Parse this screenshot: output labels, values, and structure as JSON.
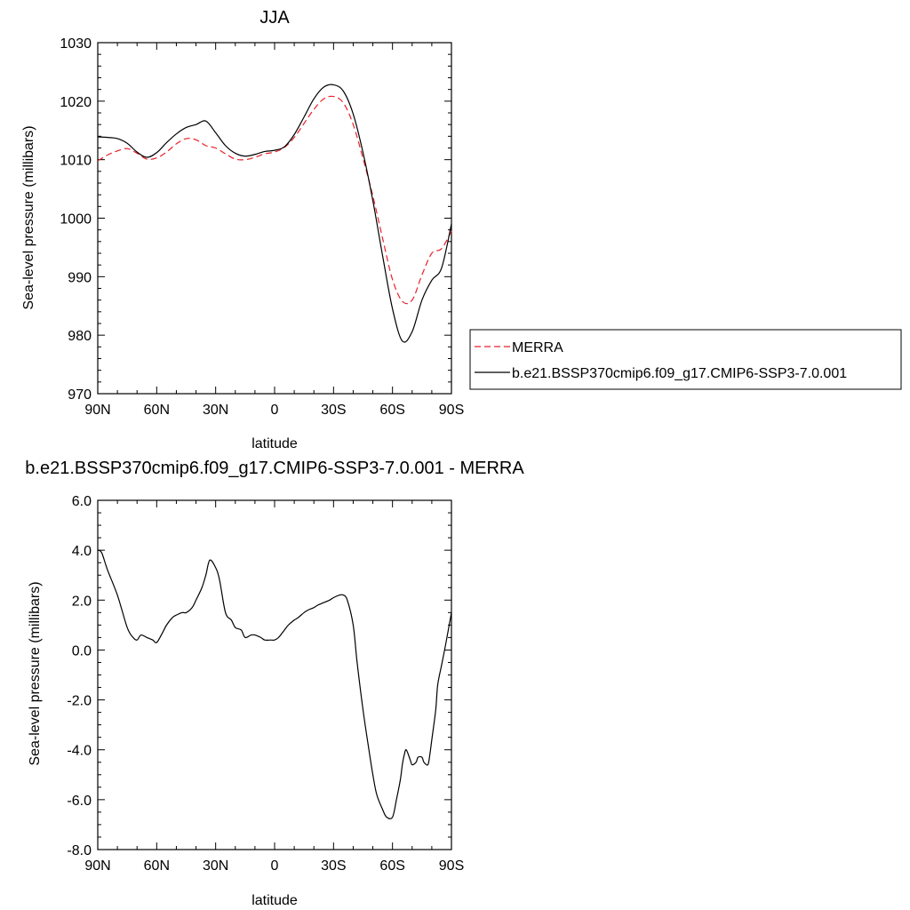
{
  "chart_data": [
    {
      "type": "line",
      "title": "JJA",
      "xlabel": "latitude",
      "ylabel": "Sea-level pressure (millibars)",
      "x_range": [
        90,
        -90
      ],
      "ylim": [
        970,
        1030
      ],
      "x_ticks": [
        90,
        60,
        30,
        0,
        -30,
        -60,
        -90
      ],
      "x_tick_labels": [
        "90N",
        "60N",
        "30N",
        "0",
        "30S",
        "60S",
        "90S"
      ],
      "y_ticks": [
        970,
        980,
        990,
        1000,
        1010,
        1020,
        1030
      ],
      "y_tick_labels": [
        "970",
        "980",
        "990",
        "1000",
        "1010",
        "1020",
        "1030"
      ],
      "grid": false,
      "legend_position": "right",
      "series": [
        {
          "name": "MERRA",
          "style": "dashed",
          "color": "#e8202a",
          "x": [
            90,
            85,
            80,
            75,
            70,
            65,
            60,
            55,
            50,
            45,
            40,
            35,
            30,
            25,
            20,
            15,
            10,
            5,
            0,
            -5,
            -10,
            -15,
            -20,
            -25,
            -30,
            -35,
            -40,
            -45,
            -50,
            -55,
            -60,
            -65,
            -70,
            -75,
            -80,
            -85,
            -90
          ],
          "y": [
            1009.8,
            1010.8,
            1011.5,
            1011.9,
            1011.1,
            1010.1,
            1010.3,
            1011.3,
            1012.7,
            1013.6,
            1013.4,
            1012.4,
            1012.0,
            1011.0,
            1010.1,
            1010.0,
            1010.4,
            1011.0,
            1011.3,
            1012.1,
            1013.8,
            1016.2,
            1018.6,
            1020.4,
            1020.8,
            1019.7,
            1016.0,
            1010.2,
            1003.8,
            996.5,
            989.5,
            985.8,
            986.0,
            990.3,
            994.0,
            994.8,
            997.8
          ]
        },
        {
          "name": "b.e21.BSSP370cmip6.f09_g17.CMIP6-SSP3-7.0.001",
          "style": "solid",
          "color": "#000000",
          "x": [
            90,
            85,
            80,
            75,
            70,
            65,
            60,
            55,
            50,
            45,
            40,
            35,
            30,
            25,
            20,
            15,
            10,
            5,
            0,
            -5,
            -10,
            -15,
            -20,
            -25,
            -30,
            -35,
            -40,
            -45,
            -50,
            -55,
            -60,
            -65,
            -70,
            -75,
            -80,
            -85,
            -90
          ],
          "y": [
            1013.9,
            1013.8,
            1013.6,
            1012.8,
            1011.3,
            1010.4,
            1011.2,
            1012.9,
            1014.4,
            1015.5,
            1016.0,
            1016.6,
            1014.6,
            1012.4,
            1011.1,
            1010.6,
            1010.9,
            1011.4,
            1011.6,
            1012.2,
            1014.3,
            1017.3,
            1020.4,
            1022.4,
            1022.8,
            1021.7,
            1017.8,
            1011.2,
            1003.0,
            993.5,
            984.5,
            979.0,
            980.6,
            986.0,
            989.4,
            991.5,
            999.0
          ]
        }
      ]
    },
    {
      "type": "line",
      "title": "b.e21.BSSP370cmip6.f09_g17.CMIP6-SSP3-7.0.001 - MERRA",
      "xlabel": "latitude",
      "ylabel": "Sea-level pressure (millibars)",
      "x_range": [
        90,
        -90
      ],
      "ylim": [
        -8.0,
        6.0
      ],
      "x_ticks": [
        90,
        60,
        30,
        0,
        -30,
        -60,
        -90
      ],
      "x_tick_labels": [
        "90N",
        "60N",
        "30N",
        "0",
        "30S",
        "60S",
        "90S"
      ],
      "y_ticks": [
        -8,
        -6,
        -4,
        -2,
        0,
        2,
        4,
        6
      ],
      "y_tick_labels": [
        "-8.0",
        "-6.0",
        "-4.0",
        "-2.0",
        "0.0",
        "2.0",
        "4.0",
        "6.0"
      ],
      "grid": false,
      "series": [
        {
          "style": "solid",
          "color": "#000000",
          "x": [
            90,
            88,
            85,
            80,
            75,
            72,
            70,
            68,
            65,
            62,
            60,
            57,
            55,
            52,
            50,
            47,
            45,
            42,
            40,
            37,
            35,
            33,
            30,
            28,
            25,
            22,
            20,
            17,
            15,
            12,
            10,
            7,
            5,
            2,
            0,
            -2,
            -5,
            -7,
            -10,
            -12,
            -15,
            -17,
            -20,
            -22,
            -25,
            -28,
            -30,
            -33,
            -35,
            -37,
            -40,
            -42,
            -45,
            -48,
            -50,
            -52,
            -55,
            -57,
            -60,
            -62,
            -64,
            -65,
            -66,
            -67,
            -69,
            -70,
            -72,
            -73,
            -75,
            -76,
            -78,
            -79,
            -80,
            -82,
            -83,
            -85,
            -87,
            -90
          ],
          "y": [
            4.0,
            3.9,
            3.2,
            2.2,
            0.9,
            0.5,
            0.4,
            0.6,
            0.5,
            0.4,
            0.3,
            0.7,
            1.0,
            1.3,
            1.4,
            1.5,
            1.5,
            1.7,
            2.0,
            2.5,
            3.0,
            3.6,
            3.3,
            2.8,
            1.5,
            1.2,
            0.9,
            0.8,
            0.5,
            0.6,
            0.6,
            0.5,
            0.4,
            0.4,
            0.4,
            0.5,
            0.8,
            1.0,
            1.2,
            1.3,
            1.5,
            1.6,
            1.7,
            1.8,
            1.9,
            2.0,
            2.1,
            2.2,
            2.2,
            2.0,
            1.0,
            -0.5,
            -2.4,
            -4.0,
            -5.0,
            -5.8,
            -6.4,
            -6.7,
            -6.7,
            -6.0,
            -5.2,
            -4.6,
            -4.2,
            -4.0,
            -4.4,
            -4.6,
            -4.5,
            -4.3,
            -4.3,
            -4.5,
            -4.6,
            -4.2,
            -3.6,
            -2.4,
            -1.4,
            -0.6,
            0.2,
            1.5
          ]
        }
      ]
    }
  ]
}
